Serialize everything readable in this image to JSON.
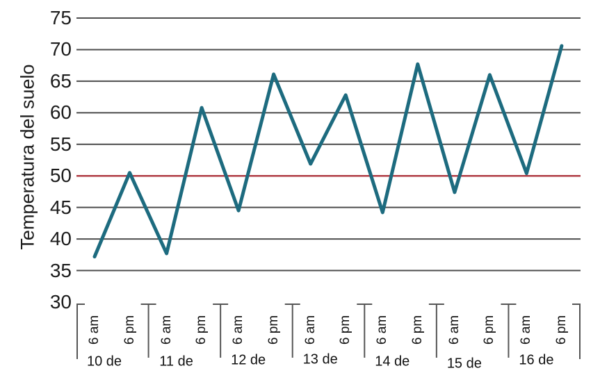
{
  "chart_data": {
    "type": "line",
    "title": "",
    "ylabel": "Temperatura del suelo",
    "xlabel": "",
    "ylim": [
      30,
      75
    ],
    "y_ticks": [
      75,
      70,
      65,
      60,
      55,
      50,
      45,
      40,
      35,
      30
    ],
    "grid": true,
    "legend": "none",
    "reference_line": {
      "value": 50,
      "color": "#b03b44"
    },
    "days": [
      "10 de",
      "11 de",
      "12 de",
      "13 de",
      "14 de",
      "15 de",
      "16 de"
    ],
    "time_labels": [
      "6 am",
      "6 pm"
    ],
    "series": [
      {
        "name": "Temperatura del suelo",
        "color": "#1d6b7f",
        "values": [
          37.2,
          50.5,
          37.7,
          60.8,
          44.5,
          66.1,
          51.9,
          62.8,
          44.2,
          67.7,
          47.4,
          66.0,
          50.4,
          70.6
        ]
      }
    ]
  },
  "colors": {
    "line": "#1d6b7f",
    "reference": "#b03b44",
    "gridline": "#4d4d4d",
    "axis_tick": "#555555",
    "text": "#1c1c1c"
  }
}
